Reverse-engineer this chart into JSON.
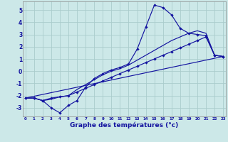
{
  "title": "Graphe des températures (°c)",
  "bg_color": "#cce8e8",
  "grid_color": "#aacccc",
  "line_color": "#1414a0",
  "x_ticks": [
    0,
    1,
    2,
    3,
    4,
    5,
    6,
    7,
    8,
    9,
    10,
    11,
    12,
    13,
    14,
    15,
    16,
    17,
    18,
    19,
    20,
    21,
    22,
    23
  ],
  "y_ticks": [
    -3,
    -2,
    -1,
    0,
    1,
    2,
    3,
    4,
    5
  ],
  "ylim": [
    -3.7,
    5.7
  ],
  "xlim": [
    -0.3,
    23.3
  ],
  "line_main_x": [
    0,
    1,
    2,
    3,
    4,
    5,
    6,
    7,
    8,
    9,
    10,
    11,
    12,
    13,
    14,
    15,
    16,
    17,
    18,
    19,
    20,
    21,
    22,
    23
  ],
  "line_main_y": [
    -2.2,
    -2.2,
    -2.4,
    -3.0,
    -3.4,
    -2.8,
    -2.4,
    -1.3,
    -0.6,
    -0.2,
    0.1,
    0.3,
    0.6,
    1.8,
    3.6,
    5.4,
    5.2,
    4.6,
    3.5,
    3.1,
    3.0,
    2.9,
    1.3,
    1.2
  ],
  "line2_x": [
    0,
    1,
    2,
    3,
    4,
    5,
    6,
    7,
    8,
    9,
    10,
    11,
    12,
    13,
    14,
    15,
    16,
    17,
    18,
    19,
    20,
    21,
    22,
    23
  ],
  "line2_y": [
    -2.2,
    -2.2,
    -2.4,
    -2.3,
    -2.1,
    -2.0,
    -1.5,
    -1.1,
    -0.7,
    -0.3,
    0.0,
    0.2,
    0.5,
    0.9,
    1.3,
    1.7,
    2.1,
    2.5,
    2.8,
    3.1,
    3.3,
    3.1,
    1.3,
    1.2
  ],
  "line3_x": [
    0,
    1,
    2,
    3,
    4,
    5,
    6,
    7,
    8,
    9,
    10,
    11,
    12,
    13,
    14,
    15,
    16,
    17,
    18,
    19,
    20,
    21,
    22,
    23
  ],
  "line3_y": [
    -2.2,
    -2.2,
    -2.4,
    -2.2,
    -2.1,
    -2.0,
    -1.7,
    -1.4,
    -1.1,
    -0.8,
    -0.5,
    -0.2,
    0.1,
    0.4,
    0.7,
    1.0,
    1.3,
    1.6,
    1.9,
    2.2,
    2.5,
    2.8,
    1.3,
    1.2
  ],
  "line4_x": [
    0,
    23
  ],
  "line4_y": [
    -2.2,
    1.2
  ]
}
